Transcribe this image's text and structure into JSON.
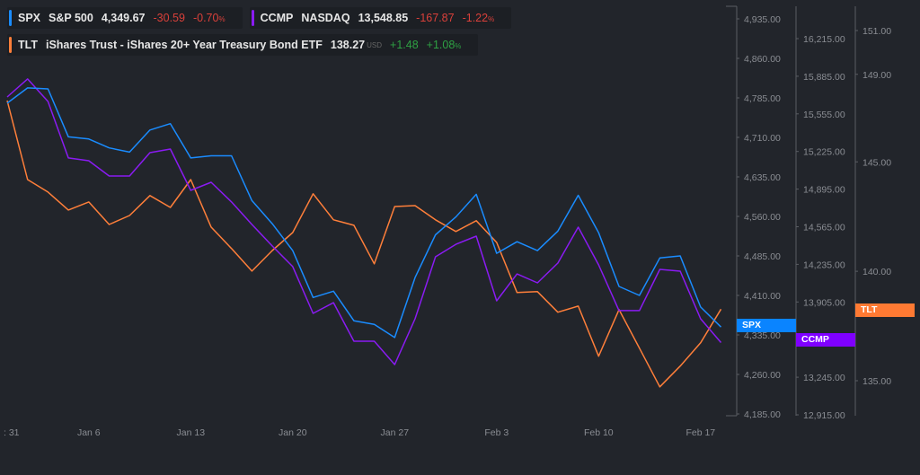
{
  "legend": {
    "spx": {
      "ticker": "SPX",
      "name": "S&P 500",
      "price": "4,349.67",
      "change": "-30.59",
      "change_pct": "-0.70",
      "pct_sign": "%"
    },
    "ccmp": {
      "ticker": "CCMP",
      "name": "NASDAQ",
      "price": "13,548.85",
      "change": "-167.87",
      "change_pct": "-1.22",
      "pct_sign": "%"
    },
    "tlt": {
      "ticker": "TLT",
      "name": "iShares Trust - iShares 20+ Year Treasury Bond ETF",
      "price": "138.27",
      "currency": "USD",
      "change": "+1.48",
      "change_pct": "+1.08",
      "pct_sign": "%"
    }
  },
  "colors": {
    "spx": "#1a8cff",
    "ccmp": "#8a1bf2",
    "tlt": "#ff7f3a",
    "background": "#22252b"
  },
  "badges": {
    "spx": "SPX",
    "ccmp": "CCMP",
    "tlt": "TLT"
  },
  "chart_data": {
    "type": "line",
    "x_tick_labels": [
      ": 31",
      "Jan 6",
      "Jan 13",
      "Jan 20",
      "Jan 27",
      "Feb 3",
      "Feb 10",
      "Feb 17"
    ],
    "x_tick_index": [
      0,
      4,
      9,
      14,
      19,
      24,
      29,
      34
    ],
    "series": [
      {
        "name": "SPX",
        "axis": "spx",
        "values": [
          4775,
          4804,
          4802,
          4711,
          4707,
          4690,
          4682,
          4724,
          4736,
          4671,
          4675,
          4675,
          4590,
          4546,
          4495,
          4406,
          4418,
          4362,
          4355,
          4330,
          4444,
          4525,
          4559,
          4602,
          4490,
          4512,
          4495,
          4532,
          4600,
          4529,
          4427,
          4410,
          4481,
          4485,
          4388,
          4350
        ]
      },
      {
        "name": "CCMP",
        "axis": "ccmp",
        "values": [
          15703,
          15861,
          15664,
          15168,
          15144,
          15010,
          15010,
          15215,
          15246,
          14884,
          14955,
          14782,
          14585,
          14396,
          14215,
          13805,
          13899,
          13561,
          13561,
          13356,
          13758,
          14301,
          14411,
          14482,
          13915,
          14151,
          14073,
          14246,
          14561,
          14230,
          13829,
          13829,
          14191,
          14175,
          13758,
          13549
        ]
      },
      {
        "name": "TLT",
        "axis": "tlt",
        "values": [
          147.8,
          144.19,
          143.62,
          142.8,
          143.17,
          142.14,
          142.55,
          143.46,
          142.92,
          144.19,
          142.02,
          141.04,
          140.01,
          140.95,
          141.77,
          143.54,
          142.35,
          142.1,
          140.34,
          142.96,
          143.0,
          142.35,
          141.82,
          142.31,
          141.32,
          139.03,
          139.07,
          138.13,
          138.41,
          136.12,
          138.25,
          136.49,
          134.72,
          135.67,
          136.73,
          138.27
        ]
      }
    ],
    "axes": {
      "spx": {
        "ticks": [
          "4,935.00",
          "4,860.00",
          "4,785.00",
          "4,710.00",
          "4,635.00",
          "4,560.00",
          "4,485.00",
          "4,410.00",
          "4,335.00",
          "4,260.00",
          "4,185.00"
        ],
        "tick_values": [
          4935,
          4860,
          4785,
          4710,
          4635,
          4560,
          4485,
          4410,
          4335,
          4260,
          4185
        ],
        "ylim": [
          4185,
          4935
        ]
      },
      "ccmp": {
        "ticks": [
          "16,215.00",
          "15,885.00",
          "15,555.00",
          "15,225.00",
          "14,895.00",
          "14,565.00",
          "14,235.00",
          "13,905.00",
          "13,245.00",
          "12,915.00"
        ],
        "tick_values": [
          16215,
          15885,
          15555,
          15225,
          14895,
          14565,
          14235,
          13905,
          13245,
          12915
        ],
        "ylim": [
          12915,
          16215
        ]
      },
      "tlt": {
        "ticks": [
          "151.00",
          "149.00",
          "145.00",
          "140.00",
          "135.00"
        ],
        "tick_values": [
          151,
          149,
          145,
          140,
          135
        ],
        "ylim": [
          135,
          151
        ]
      }
    }
  }
}
